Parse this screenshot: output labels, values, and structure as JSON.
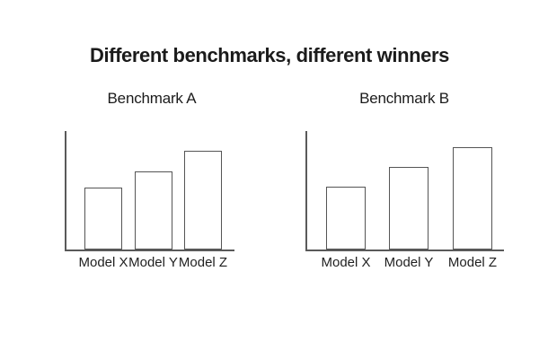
{
  "page": {
    "title": "Different benchmarks, different winners",
    "background": "#ffffff"
  },
  "colors": {
    "text": "#1b1b1b",
    "axis_line": "#5a5a5a",
    "bar_stroke": "#555555",
    "bar_fill": "#ffffff"
  },
  "chart_data": [
    {
      "type": "bar",
      "title": "Benchmark A",
      "categories": [
        "Model X",
        "Model Y",
        "Model Z"
      ],
      "values": [
        52,
        66,
        83
      ],
      "ylim": [
        0,
        100
      ],
      "grid": false,
      "y_ticks_visible": false,
      "legend": "none",
      "bar_style": "white fill, gray outline"
    },
    {
      "type": "bar",
      "title": "Benchmark B",
      "categories": [
        "Model X",
        "Model Y",
        "Model Z"
      ],
      "values": [
        53,
        70,
        86
      ],
      "ylim": [
        0,
        100
      ],
      "grid": false,
      "y_ticks_visible": false,
      "legend": "none",
      "bar_style": "white fill, gray outline"
    }
  ]
}
